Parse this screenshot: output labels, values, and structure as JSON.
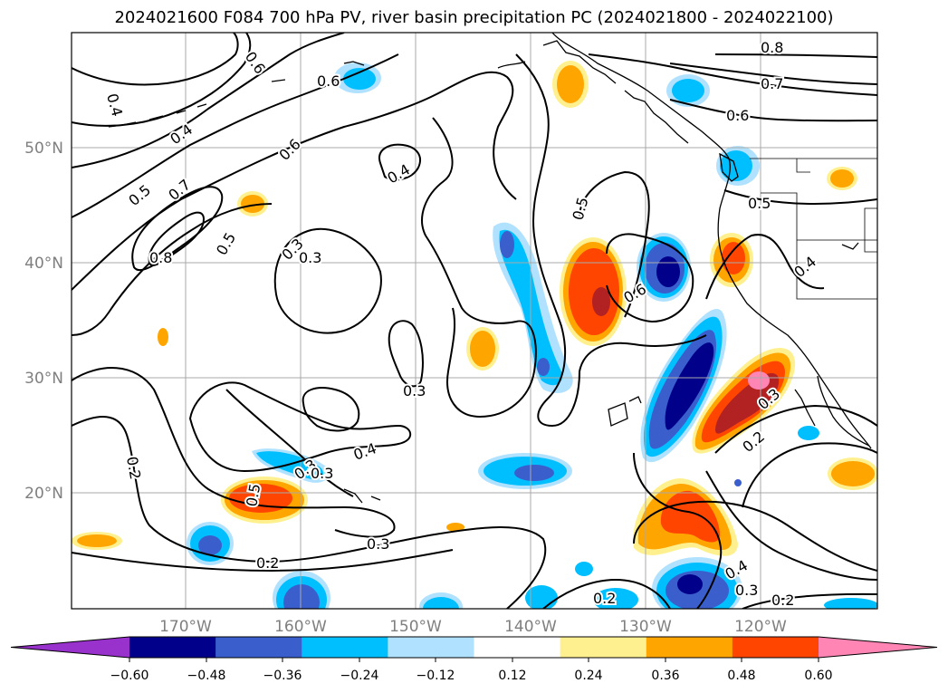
{
  "title": "2024021600 F084 700 hPa PV, river basin precipitation PC (2024021800 - 2024022100)",
  "latitude_labels": [
    "50°N",
    "40°N",
    "30°N",
    "20°N"
  ],
  "longitude_labels": [
    "170°W",
    "160°W",
    "150°W",
    "140°W",
    "130°W",
    "120°W"
  ],
  "contour_labels": [
    "0.4",
    "0.6",
    "0.6",
    "0.4",
    "0.5",
    "0.7",
    "0.8",
    "0.5",
    "0.6",
    "0.3",
    "0.4",
    "0.5",
    "0.6",
    "0.8",
    "0.7",
    "0.6",
    "0.5",
    "0.4",
    "0.3",
    "0.3",
    "0.2",
    "0.5",
    "0.3",
    "0.4",
    "0.2",
    "0.3",
    "0.2",
    "0.2",
    "0.4",
    "0.3",
    "0.2",
    "0.3",
    "0.3"
  ],
  "colorbar": {
    "tick_labels": [
      "−0.60",
      "−0.48",
      "−0.36",
      "−0.24",
      "−0.12",
      "0.12",
      "0.24",
      "0.36",
      "0.48",
      "0.60"
    ],
    "colors": [
      "#9932cc",
      "#00008b",
      "#3a5fcd",
      "#00bfff",
      "#b0e2ff",
      "#ffffff",
      "#fff08f",
      "#ffa500",
      "#ff4500",
      "#b22222",
      "#ff85b4"
    ]
  },
  "colors": {
    "contour": "#000000",
    "coastline": "#000000",
    "gridline": "#a9a9a9",
    "axis_label": "#7f7f7f"
  }
}
